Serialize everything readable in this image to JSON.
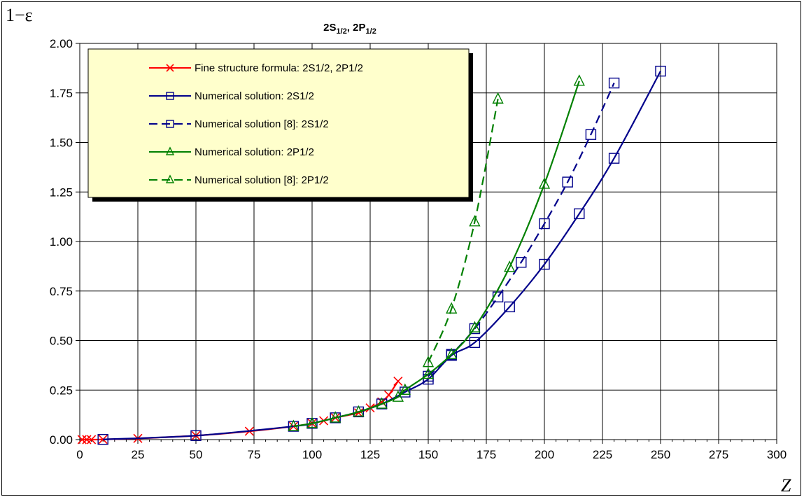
{
  "chart_data": {
    "type": "line",
    "title": {
      "parts": [
        "2S",
        "1/2",
        ", 2P",
        "1/2"
      ]
    },
    "xlabel": "Z",
    "ylabel": "1−ε",
    "xlim": [
      0,
      300
    ],
    "ylim": [
      0,
      2.0
    ],
    "xticks": [
      "0",
      "25",
      "50",
      "75",
      "100",
      "125",
      "150",
      "175",
      "200",
      "225",
      "250",
      "275",
      "300"
    ],
    "yticks": [
      "0.00",
      "0.25",
      "0.50",
      "0.75",
      "1.00",
      "1.25",
      "1.50",
      "1.75",
      "2.00"
    ],
    "grid": true,
    "legend_position": "top-left",
    "series": [
      {
        "name": "Fine structure formula: 2S1/2, 2P1/2",
        "color": "#ff0000",
        "marker": "x",
        "dash": false,
        "x": [
          1,
          3,
          5,
          10,
          25,
          50,
          73,
          92,
          100,
          105,
          110,
          120,
          125,
          130,
          133,
          137
        ],
        "y": [
          0.0,
          0.0,
          0.0,
          0.001,
          0.006,
          0.02,
          0.042,
          0.067,
          0.082,
          0.095,
          0.11,
          0.135,
          0.16,
          0.19,
          0.225,
          0.295
        ]
      },
      {
        "name": "Numerical solution: 2S1/2",
        "color": "#00008b",
        "marker": "square",
        "dash": false,
        "x": [
          10,
          50,
          92,
          100,
          110,
          120,
          130,
          140,
          150,
          160,
          170,
          185,
          200,
          215,
          230,
          250
        ],
        "y": [
          0.001,
          0.02,
          0.067,
          0.082,
          0.11,
          0.14,
          0.18,
          0.24,
          0.305,
          0.425,
          0.49,
          0.67,
          0.885,
          1.14,
          1.42,
          1.86
        ]
      },
      {
        "name": "Numerical solution [8]: 2S1/2",
        "color": "#00008b",
        "marker": "square",
        "dash": true,
        "x": [
          150,
          160,
          170,
          180,
          190,
          200,
          210,
          220,
          230
        ],
        "y": [
          0.32,
          0.43,
          0.56,
          0.72,
          0.895,
          1.09,
          1.3,
          1.54,
          1.8
        ]
      },
      {
        "name": "Numerical solution: 2P1/2",
        "color": "#008000",
        "marker": "triangle",
        "dash": false,
        "x": [
          92,
          100,
          110,
          120,
          130,
          137,
          140,
          150,
          160,
          170,
          185,
          200,
          215
        ],
        "y": [
          0.067,
          0.082,
          0.11,
          0.14,
          0.18,
          0.215,
          0.25,
          0.33,
          0.43,
          0.565,
          0.87,
          1.29,
          1.81
        ]
      },
      {
        "name": "Numerical solution [8]: 2P1/2",
        "color": "#008000",
        "marker": "triangle",
        "dash": true,
        "x": [
          150,
          160,
          170,
          180
        ],
        "y": [
          0.39,
          0.66,
          1.1,
          1.72
        ]
      }
    ]
  }
}
